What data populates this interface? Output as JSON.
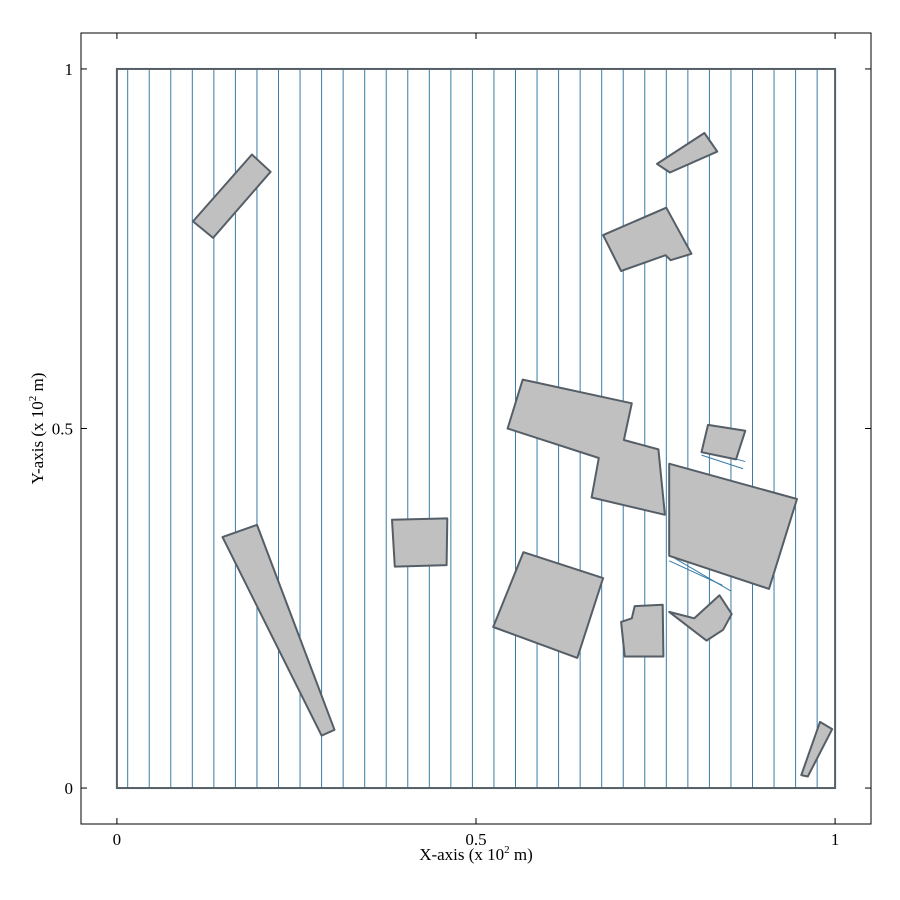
{
  "chart_data": {
    "type": "diagram",
    "xlabel": {
      "prefix": "X-axis (x 10",
      "sup": "2",
      "suffix": " m)"
    },
    "ylabel": {
      "prefix": "Y-axis (x 10",
      "sup": "2",
      "suffix": " m)"
    },
    "xlim": [
      -0.05,
      1.05
    ],
    "ylim": [
      -0.05,
      1.05
    ],
    "x_ticks": [
      {
        "value": 0,
        "label": "0"
      },
      {
        "value": 0.5,
        "label": "0.5"
      },
      {
        "value": 1,
        "label": "1"
      }
    ],
    "y_ticks": [
      {
        "value": 0,
        "label": "0"
      },
      {
        "value": 0.5,
        "label": "0.5"
      },
      {
        "value": 1,
        "label": "1"
      }
    ],
    "domain": {
      "x": [
        0,
        1
      ],
      "y": [
        0,
        1
      ]
    },
    "sweep_lines_x": [
      0.015,
      0.045,
      0.075,
      0.105,
      0.135,
      0.165,
      0.195,
      0.225,
      0.255,
      0.285,
      0.315,
      0.345,
      0.375,
      0.405,
      0.435,
      0.465,
      0.495,
      0.525,
      0.555,
      0.585,
      0.615,
      0.645,
      0.675,
      0.705,
      0.735,
      0.765,
      0.795,
      0.825,
      0.855,
      0.885,
      0.915,
      0.945,
      0.975
    ],
    "obstacles": [
      {
        "name": "obstacle-1",
        "points": [
          [
            0.106,
            0.788
          ],
          [
            0.188,
            0.881
          ],
          [
            0.214,
            0.857
          ],
          [
            0.134,
            0.765
          ]
        ]
      },
      {
        "name": "obstacle-2",
        "points": [
          [
            0.147,
            0.349
          ],
          [
            0.195,
            0.366
          ],
          [
            0.303,
            0.081
          ],
          [
            0.285,
            0.073
          ]
        ]
      },
      {
        "name": "obstacle-3",
        "points": [
          [
            0.383,
            0.373
          ],
          [
            0.46,
            0.375
          ],
          [
            0.459,
            0.31
          ],
          [
            0.387,
            0.308
          ]
        ]
      },
      {
        "name": "obstacle-4",
        "points": [
          [
            0.565,
            0.568
          ],
          [
            0.717,
            0.535
          ],
          [
            0.706,
            0.484
          ],
          [
            0.754,
            0.471
          ],
          [
            0.763,
            0.38
          ],
          [
            0.661,
            0.404
          ],
          [
            0.671,
            0.459
          ],
          [
            0.544,
            0.5
          ]
        ]
      },
      {
        "name": "obstacle-5",
        "points": [
          [
            0.566,
            0.328
          ],
          [
            0.677,
            0.292
          ],
          [
            0.641,
            0.181
          ],
          [
            0.524,
            0.224
          ]
        ]
      },
      {
        "name": "obstacle-6",
        "points": [
          [
            0.717,
            0.236
          ],
          [
            0.721,
            0.253
          ],
          [
            0.76,
            0.255
          ],
          [
            0.761,
            0.183
          ],
          [
            0.707,
            0.183
          ],
          [
            0.702,
            0.231
          ]
        ]
      },
      {
        "name": "obstacle-7",
        "points": [
          [
            0.769,
            0.451
          ],
          [
            0.947,
            0.402
          ],
          [
            0.908,
            0.277
          ],
          [
            0.769,
            0.323
          ]
        ]
      },
      {
        "name": "obstacle-8",
        "points": [
          [
            0.804,
            0.236
          ],
          [
            0.839,
            0.268
          ],
          [
            0.856,
            0.242
          ],
          [
            0.844,
            0.22
          ],
          [
            0.821,
            0.205
          ],
          [
            0.769,
            0.245
          ]
        ]
      },
      {
        "name": "obstacle-9",
        "points": [
          [
            0.823,
            0.505
          ],
          [
            0.875,
            0.497
          ],
          [
            0.862,
            0.457
          ],
          [
            0.814,
            0.467
          ]
        ]
      },
      {
        "name": "obstacle-10",
        "points": [
          [
            0.752,
            0.868
          ],
          [
            0.818,
            0.911
          ],
          [
            0.836,
            0.885
          ],
          [
            0.77,
            0.856
          ]
        ]
      },
      {
        "name": "obstacle-11",
        "points": [
          [
            0.677,
            0.769
          ],
          [
            0.765,
            0.807
          ],
          [
            0.8,
            0.743
          ],
          [
            0.771,
            0.734
          ],
          [
            0.764,
            0.741
          ],
          [
            0.702,
            0.719
          ]
        ]
      },
      {
        "name": "obstacle-12",
        "points": [
          [
            0.979,
            0.092
          ],
          [
            0.996,
            0.082
          ],
          [
            0.962,
            0.016
          ],
          [
            0.953,
            0.018
          ]
        ]
      }
    ],
    "extra_segments": [
      [
        [
          0.814,
          0.463
        ],
        [
          0.872,
          0.444
        ]
      ],
      [
        [
          0.817,
          0.47
        ],
        [
          0.875,
          0.454
        ]
      ],
      [
        [
          0.769,
          0.324
        ],
        [
          0.855,
          0.274
        ]
      ],
      [
        [
          0.769,
          0.316
        ],
        [
          0.843,
          0.282
        ]
      ]
    ],
    "colors": {
      "sweep_line": "#3a7ca5",
      "obstacle_fill": "#c0c0c0",
      "obstacle_stroke": "#555e66",
      "domain_border": "#555e66",
      "frame": "#000000"
    }
  }
}
